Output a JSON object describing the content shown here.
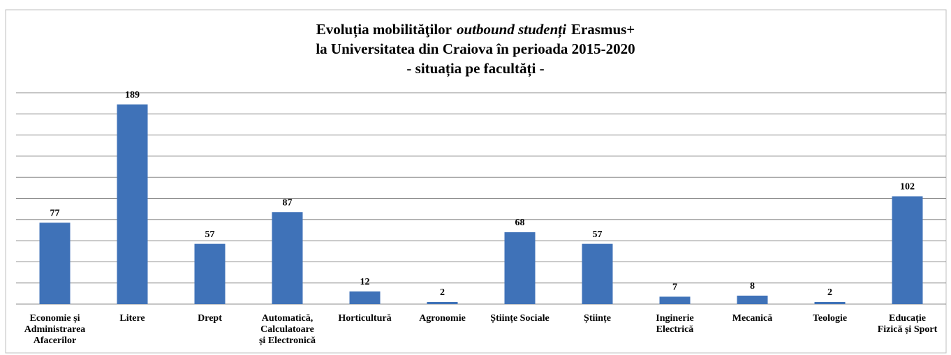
{
  "chart_data": {
    "type": "bar",
    "title": [
      [
        "Evoluția mobilităţilor",
        "outbound studenți",
        "Erasmus+"
      ],
      [
        "la Universitatea din Craiova în perioada 2015-2020"
      ],
      [
        "- situația pe facultăți -"
      ]
    ],
    "categories": [
      [
        "Economie și",
        "Administrarea",
        "Afacerilor"
      ],
      [
        "Litere"
      ],
      [
        "Drept"
      ],
      [
        "Automatică,",
        "Calculatoare",
        "și Electronică"
      ],
      [
        "Horticultură"
      ],
      [
        "Agronomie"
      ],
      [
        "Științe Sociale"
      ],
      [
        "Științe"
      ],
      [
        "Inginerie",
        "Electrică"
      ],
      [
        "Mecanică"
      ],
      [
        "Teologie"
      ],
      [
        "Educație",
        "Fizică și Sport"
      ]
    ],
    "values": [
      77,
      189,
      57,
      87,
      12,
      2,
      68,
      57,
      7,
      8,
      2,
      102
    ],
    "color": "#3f72b8",
    "ylim": [
      0,
      200
    ],
    "yticks": [
      0,
      20,
      40,
      60,
      80,
      100,
      120,
      140,
      160,
      180,
      200
    ],
    "grid": true
  }
}
